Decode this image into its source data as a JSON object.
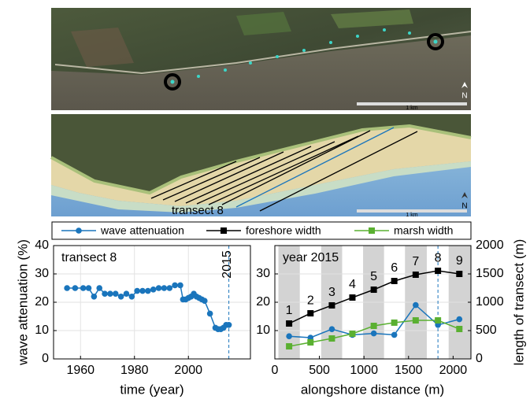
{
  "chart_data": [
    {
      "type": "line",
      "annotation": "transect 8",
      "x": [
        1955,
        1958,
        1961,
        1963,
        1965,
        1967,
        1969,
        1971,
        1973,
        1975,
        1977,
        1979,
        1981,
        1983,
        1985,
        1987,
        1989,
        1991,
        1993,
        1995,
        1997,
        1998,
        1999,
        2000,
        2001,
        2002,
        2003,
        2004,
        2005,
        2006,
        2008,
        2010,
        2011,
        2012,
        2013,
        2014,
        2015
      ],
      "values": [
        25,
        25,
        25,
        25,
        22,
        25,
        23,
        23,
        23,
        22,
        23,
        22,
        24,
        24,
        24,
        24.5,
        25,
        25,
        25,
        26,
        26,
        21,
        21,
        21.5,
        22,
        23,
        22,
        21.5,
        21,
        20.5,
        16,
        11,
        10.5,
        10.5,
        11,
        12,
        12
      ],
      "color": "#1a75bc",
      "xlim": [
        1950,
        2023
      ],
      "xticks": [
        1960,
        1980,
        2000
      ],
      "ylim": [
        0,
        40
      ],
      "yticks": [
        0,
        10,
        20,
        30,
        40
      ],
      "grid": true,
      "vline": 2015,
      "xlabel": "time (year)",
      "ylabel": "wave attenuation (%)"
    },
    {
      "type": "line",
      "annotation": "year 2015",
      "x": [
        160,
        400,
        640,
        870,
        1110,
        1340,
        1580,
        1830,
        2070
      ],
      "point_labels": [
        "1",
        "2",
        "3",
        "4",
        "5",
        "6",
        "7",
        "8",
        "9"
      ],
      "series": [
        {
          "name": "wave attenuation",
          "color": "#1a75bc",
          "marker": "circle",
          "values": [
            8,
            7.5,
            10.5,
            8.5,
            9,
            8.5,
            19,
            12,
            14
          ]
        },
        {
          "name": "foreshore width",
          "color": "#000000",
          "marker": "square",
          "axis": "y2",
          "values": [
            625,
            805,
            945,
            1083,
            1222,
            1375,
            1486,
            1555,
            1500
          ]
        },
        {
          "name": "marsh width",
          "color": "#5ab031",
          "marker": "square",
          "axis": "y2",
          "values": [
            222,
            292,
            361,
            444,
            583,
            640,
            680,
            680,
            528
          ]
        }
      ],
      "xlim": [
        0,
        2200
      ],
      "xticks": [
        0,
        500,
        1000,
        1500,
        2000
      ],
      "ylim": [
        0,
        40
      ],
      "yticks": [
        10,
        20,
        30
      ],
      "y2lim": [
        0,
        2000
      ],
      "y2ticks": [
        0,
        500,
        1000,
        1500,
        2000
      ],
      "grid": true,
      "vline": 1830,
      "xlabel": "alongshore distance (m)",
      "ylabel": "length of transect (m)"
    }
  ],
  "images": [
    {
      "scale_label": "1 km",
      "north_label": "N"
    },
    {
      "scale_label": "1 km",
      "north_label": "N",
      "annotation": "transect 8"
    }
  ]
}
